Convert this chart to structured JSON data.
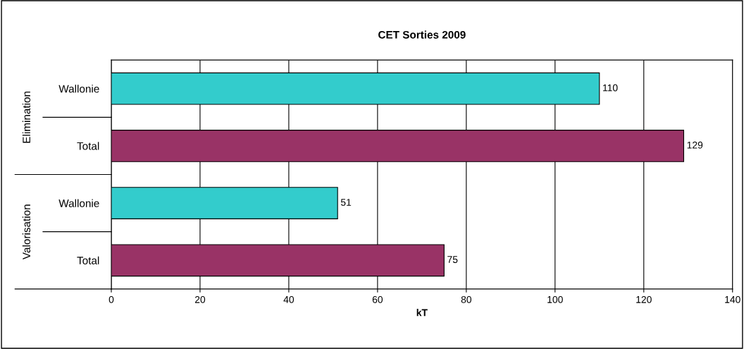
{
  "chart_data": {
    "type": "bar",
    "orientation": "horizontal",
    "title": "CET Sorties 2009",
    "xlabel": "kT",
    "categories": [
      "Wallonie",
      "Total",
      "Wallonie",
      "Total"
    ],
    "values": [
      110,
      129,
      51,
      75
    ],
    "colors": [
      "#33cccc",
      "#993366",
      "#33cccc",
      "#993366"
    ],
    "annotations": [
      "Elimination",
      "Valorisation"
    ],
    "xlim": [
      0,
      140
    ],
    "xticks": [
      0,
      20,
      40,
      60,
      80,
      100,
      120,
      140
    ],
    "grid": "x",
    "data_labels": true
  }
}
